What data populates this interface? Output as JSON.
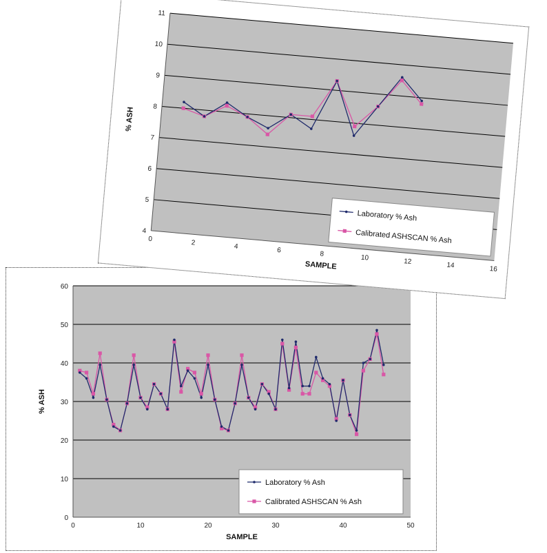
{
  "colors": {
    "plot_bg": "#c0c0c0",
    "grid": "#000000",
    "lab_series": "#1f2a6b",
    "calibrated_series": "#d957a6"
  },
  "chart_data": [
    {
      "type": "line",
      "xlabel": "SAMPLE",
      "ylabel": "% ASH",
      "xlim": [
        0,
        16
      ],
      "ylim": [
        4,
        11
      ],
      "xticks": [
        0,
        2,
        4,
        6,
        8,
        10,
        12,
        14,
        16
      ],
      "yticks": [
        4,
        5,
        6,
        7,
        8,
        9,
        10,
        11
      ],
      "grid": true,
      "legend_position": "bottom-right",
      "series": [
        {
          "name": "Laboratory % Ash",
          "x": [
            1,
            2,
            3,
            4,
            5,
            6,
            7,
            8,
            9,
            10,
            11,
            12
          ],
          "y": [
            8.2,
            7.8,
            8.3,
            7.9,
            7.6,
            8.1,
            7.7,
            9.3,
            7.6,
            8.6,
            9.6,
            8.9
          ]
        },
        {
          "name": "Calibrated ASHSCAN % Ash",
          "x": [
            1,
            2,
            3,
            4,
            5,
            6,
            7,
            8,
            9,
            10,
            11,
            12
          ],
          "y": [
            8.0,
            7.8,
            8.2,
            7.9,
            7.4,
            8.1,
            8.1,
            9.3,
            7.9,
            8.6,
            9.5,
            8.8
          ]
        }
      ]
    },
    {
      "type": "line",
      "xlabel": "SAMPLE",
      "ylabel": "% ASH",
      "xlim": [
        0,
        50
      ],
      "ylim": [
        0,
        60
      ],
      "xticks": [
        0,
        10,
        20,
        30,
        40,
        50
      ],
      "yticks": [
        0,
        10,
        20,
        30,
        40,
        50,
        60
      ],
      "grid": true,
      "legend_position": "bottom-right",
      "series": [
        {
          "name": "Laboratory % Ash",
          "x": [
            1,
            2,
            3,
            4,
            5,
            6,
            7,
            8,
            9,
            10,
            11,
            12,
            13,
            14,
            15,
            16,
            17,
            18,
            19,
            20,
            21,
            22,
            23,
            24,
            25,
            26,
            27,
            28,
            29,
            30,
            31,
            32,
            33,
            34,
            35,
            36,
            37,
            38,
            39,
            40,
            41,
            42,
            43,
            44,
            45,
            46
          ],
          "y": [
            37.5,
            36,
            31,
            39.5,
            30.5,
            23.5,
            22.5,
            29.5,
            39.5,
            31,
            28,
            34.5,
            32,
            28,
            46,
            34,
            38,
            36,
            31,
            39.5,
            30.5,
            23.5,
            22.5,
            29.5,
            39.5,
            31,
            28,
            34.5,
            32,
            28,
            46,
            33.5,
            45.5,
            34,
            34,
            41.5,
            36,
            34.5,
            25,
            35.5,
            26.5,
            22.5,
            40,
            41,
            48.5,
            39.5
          ]
        },
        {
          "name": "Calibrated ASHSCAN % Ash",
          "x": [
            1,
            2,
            3,
            4,
            5,
            6,
            7,
            8,
            9,
            10,
            11,
            12,
            13,
            14,
            15,
            16,
            17,
            18,
            19,
            20,
            21,
            22,
            23,
            24,
            25,
            26,
            27,
            28,
            29,
            30,
            31,
            32,
            33,
            34,
            35,
            36,
            37,
            38,
            39,
            40,
            41,
            42,
            43,
            44,
            45,
            46
          ],
          "y": [
            38,
            37.5,
            32,
            42.5,
            30.5,
            24,
            22.5,
            29.5,
            42,
            31,
            28.5,
            34.5,
            32,
            28,
            45.5,
            32.5,
            38.5,
            37.5,
            32,
            42,
            30.5,
            23,
            22.5,
            29.5,
            42,
            31,
            28.5,
            34.5,
            32.5,
            28,
            45,
            33,
            44,
            32,
            32,
            37.5,
            35.5,
            34,
            25.5,
            35.5,
            26.5,
            21.5,
            38,
            41,
            47.5,
            37
          ]
        }
      ]
    }
  ]
}
